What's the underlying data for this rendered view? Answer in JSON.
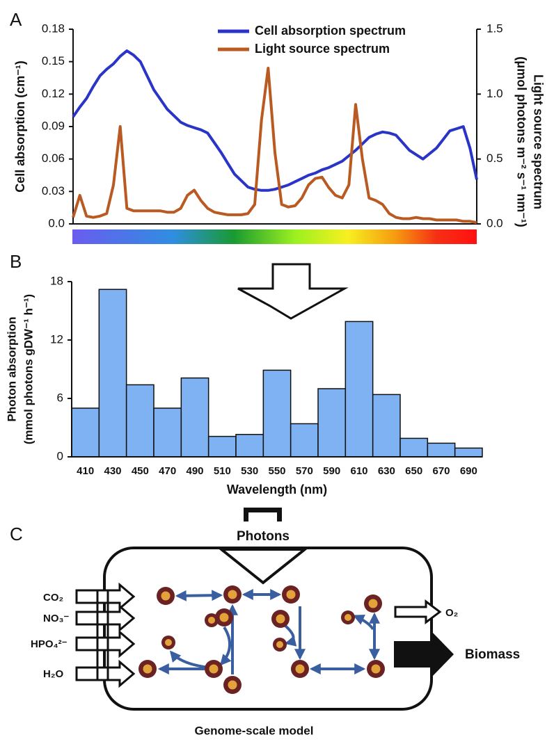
{
  "panels": [
    "A",
    "B",
    "C"
  ],
  "chart_data": [
    {
      "type": "line",
      "y_label": "Cell absorption (cm⁻¹)",
      "y2_label": [
        "Light source spectrum",
        "(μmol photons m⁻² s⁻¹ nm⁻¹)"
      ],
      "xlim": [
        400,
        700
      ],
      "ylim": [
        0,
        0.18
      ],
      "yticks": [
        {
          "value": 0,
          "label": "0.0"
        },
        0.03,
        0.06,
        0.09,
        0.12,
        0.15,
        0.18
      ],
      "y2lim": [
        0,
        1.5
      ],
      "y2ticks": [
        {
          "value": 0,
          "label": "0.0"
        },
        0.5,
        {
          "value": 1,
          "label": "1.0"
        },
        1.5
      ],
      "x": [
        400,
        405,
        410,
        415,
        420,
        425,
        430,
        435,
        440,
        445,
        450,
        455,
        460,
        465,
        470,
        475,
        480,
        485,
        490,
        495,
        500,
        505,
        510,
        515,
        520,
        525,
        530,
        535,
        540,
        545,
        550,
        555,
        560,
        565,
        570,
        575,
        580,
        585,
        590,
        595,
        600,
        605,
        610,
        615,
        620,
        625,
        630,
        635,
        640,
        645,
        650,
        655,
        660,
        665,
        670,
        675,
        680,
        685,
        690,
        695,
        700
      ],
      "series": [
        {
          "name": "Cell absorption spectrum",
          "color": "#2a35c8",
          "values": [
            0.099,
            0.108,
            0.116,
            0.127,
            0.137,
            0.143,
            0.148,
            0.155,
            0.16,
            0.156,
            0.15,
            0.137,
            0.124,
            0.115,
            0.106,
            0.1,
            0.094,
            0.091,
            0.089,
            0.087,
            0.084,
            0.075,
            0.066,
            0.056,
            0.046,
            0.04,
            0.034,
            0.032,
            0.031,
            0.031,
            0.032,
            0.034,
            0.036,
            0.039,
            0.042,
            0.045,
            0.047,
            0.05,
            0.052,
            0.055,
            0.058,
            0.063,
            0.068,
            0.074,
            0.08,
            0.083,
            0.085,
            0.084,
            0.082,
            0.075,
            0.068,
            0.064,
            0.06,
            0.065,
            0.07,
            0.078,
            0.086,
            0.088,
            0.09,
            0.07,
            0.041
          ]
        },
        {
          "name": "Light source spectrum",
          "color": "#b85a22",
          "axis": "y2",
          "values": [
            0.05,
            0.22,
            0.06,
            0.05,
            0.06,
            0.08,
            0.3,
            0.75,
            0.12,
            0.1,
            0.1,
            0.1,
            0.1,
            0.1,
            0.09,
            0.09,
            0.12,
            0.22,
            0.26,
            0.18,
            0.12,
            0.09,
            0.08,
            0.07,
            0.07,
            0.07,
            0.08,
            0.15,
            0.8,
            1.2,
            0.55,
            0.15,
            0.13,
            0.14,
            0.2,
            0.3,
            0.35,
            0.36,
            0.28,
            0.22,
            0.2,
            0.3,
            0.92,
            0.5,
            0.2,
            0.18,
            0.15,
            0.08,
            0.05,
            0.04,
            0.04,
            0.05,
            0.04,
            0.04,
            0.03,
            0.03,
            0.03,
            0.03,
            0.02,
            0.02,
            0.01
          ]
        }
      ]
    },
    {
      "type": "bar",
      "y_label": [
        "Photon absorption",
        "(mmol photons gDW⁻¹ h⁻¹)"
      ],
      "x_label": "Wavelength (nm)",
      "categories": [
        "410",
        "430",
        "450",
        "470",
        "490",
        "510",
        "530",
        "550",
        "570",
        "590",
        "610",
        "630",
        "650",
        "670",
        "690"
      ],
      "values": [
        5.0,
        17.2,
        7.4,
        5.0,
        8.1,
        2.1,
        2.3,
        8.9,
        3.4,
        7.0,
        13.9,
        6.4,
        1.9,
        1.4,
        0.9
      ],
      "color": "#7eb2f2",
      "ylim": [
        0,
        18
      ],
      "yticks": [
        0,
        6,
        12,
        18
      ]
    }
  ],
  "diagram": {
    "photons": "Photons",
    "inputs": [
      "CO₂",
      "NO₃⁻",
      "HPO₄²⁻",
      "H₂O"
    ],
    "outputs": [
      "O₂",
      "Biomass"
    ],
    "caption": "Genome-scale model"
  }
}
